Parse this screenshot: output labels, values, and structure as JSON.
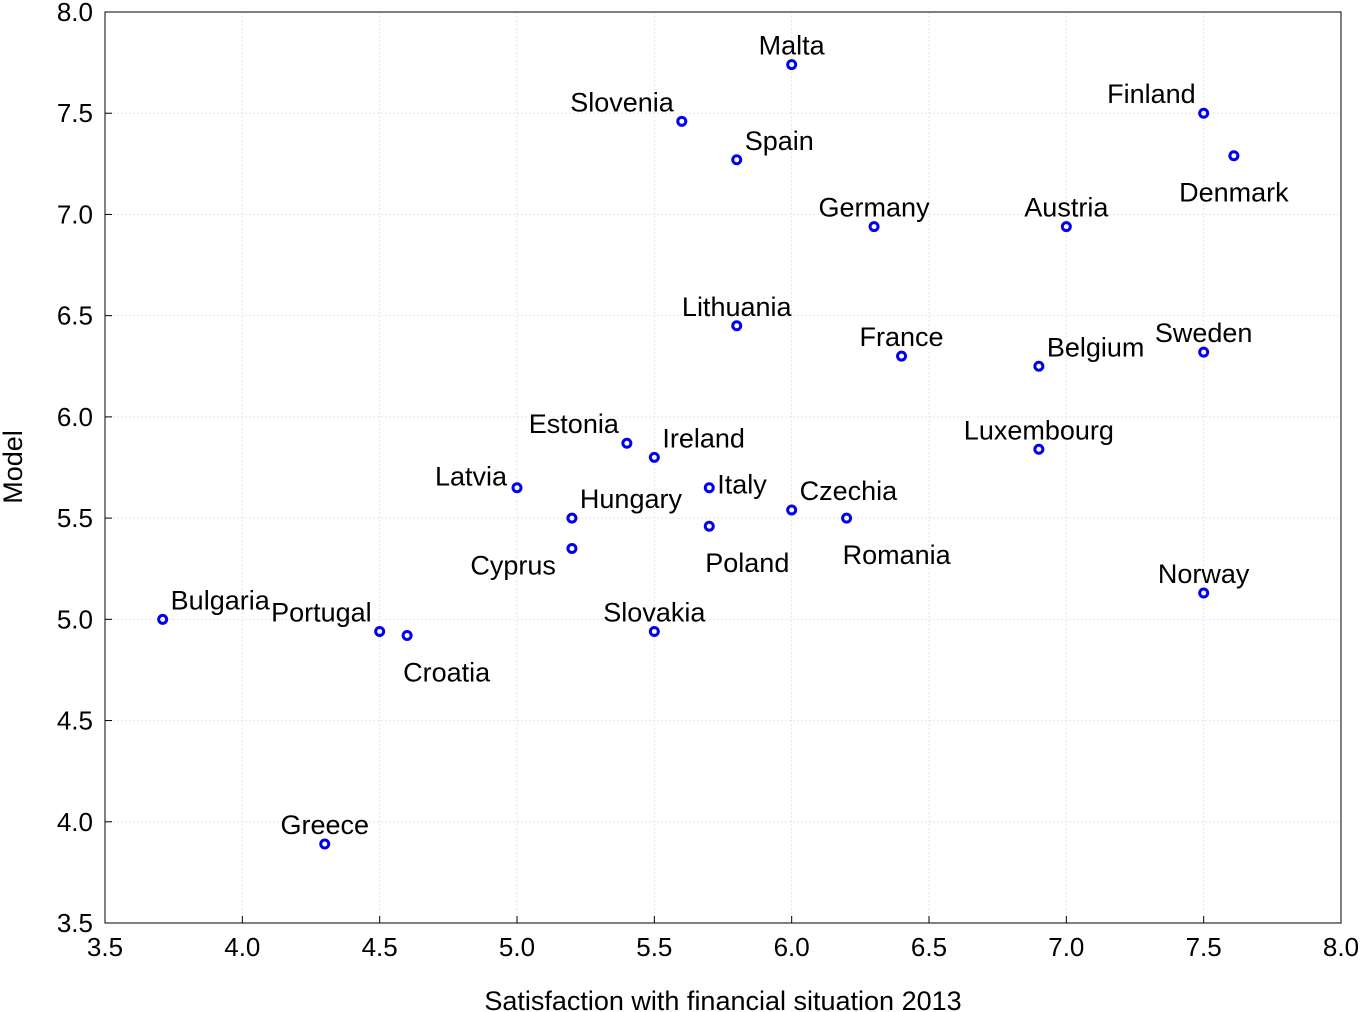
{
  "chart_data": {
    "type": "scatter",
    "title": "",
    "xlabel": "Satisfaction with financial situation 2013",
    "ylabel": "Model",
    "xlim": [
      3.5,
      8.0
    ],
    "ylim": [
      3.5,
      8.0
    ],
    "xticks": [
      "3.5",
      "4.0",
      "4.5",
      "5.0",
      "5.5",
      "6.0",
      "6.5",
      "7.0",
      "7.5",
      "8.0"
    ],
    "yticks": [
      "3.5",
      "4.0",
      "4.5",
      "5.0",
      "5.5",
      "6.0",
      "6.5",
      "7.0",
      "7.5",
      "8.0"
    ],
    "grid": true,
    "legend": "none",
    "marker_color": "#0000ee",
    "points": [
      {
        "label": "Malta",
        "x": 6.0,
        "y": 7.74,
        "pos": "above"
      },
      {
        "label": "Slovenia",
        "x": 5.6,
        "y": 7.46,
        "pos": "above-left"
      },
      {
        "label": "Spain",
        "x": 5.8,
        "y": 7.27,
        "pos": "above-right"
      },
      {
        "label": "Finland",
        "x": 7.5,
        "y": 7.5,
        "pos": "above-left"
      },
      {
        "label": "Denmark",
        "x": 7.61,
        "y": 7.29,
        "pos": "below"
      },
      {
        "label": "Germany",
        "x": 6.3,
        "y": 6.94,
        "pos": "above"
      },
      {
        "label": "Austria",
        "x": 7.0,
        "y": 6.94,
        "pos": "above"
      },
      {
        "label": "Lithuania",
        "x": 5.8,
        "y": 6.45,
        "pos": "above"
      },
      {
        "label": "France",
        "x": 6.4,
        "y": 6.3,
        "pos": "above"
      },
      {
        "label": "Belgium",
        "x": 6.9,
        "y": 6.25,
        "pos": "above-right"
      },
      {
        "label": "Sweden",
        "x": 7.5,
        "y": 6.32,
        "pos": "above"
      },
      {
        "label": "Estonia",
        "x": 5.4,
        "y": 5.87,
        "pos": "above-left"
      },
      {
        "label": "Ireland",
        "x": 5.5,
        "y": 5.8,
        "pos": "above-right"
      },
      {
        "label": "Luxembourg",
        "x": 6.9,
        "y": 5.84,
        "pos": "above"
      },
      {
        "label": "Latvia",
        "x": 5.0,
        "y": 5.65,
        "pos": "left"
      },
      {
        "label": "Italy",
        "x": 5.7,
        "y": 5.65,
        "pos": "right"
      },
      {
        "label": "Hungary",
        "x": 5.2,
        "y": 5.5,
        "pos": "above-right"
      },
      {
        "label": "Czechia",
        "x": 6.0,
        "y": 5.54,
        "pos": "above-right"
      },
      {
        "label": "Romania",
        "x": 6.2,
        "y": 5.5,
        "pos": "below-right"
      },
      {
        "label": "Poland",
        "x": 5.7,
        "y": 5.46,
        "pos": "below-right"
      },
      {
        "label": "Cyprus",
        "x": 5.2,
        "y": 5.35,
        "pos": "below-left"
      },
      {
        "label": "Norway",
        "x": 7.5,
        "y": 5.13,
        "pos": "above"
      },
      {
        "label": "Bulgaria",
        "x": 3.71,
        "y": 5.0,
        "pos": "above-right"
      },
      {
        "label": "Portugal",
        "x": 4.5,
        "y": 4.94,
        "pos": "above-left"
      },
      {
        "label": "Croatia",
        "x": 4.6,
        "y": 4.92,
        "pos": "below-right"
      },
      {
        "label": "Slovakia",
        "x": 5.5,
        "y": 4.94,
        "pos": "above"
      },
      {
        "label": "Greece",
        "x": 4.3,
        "y": 3.89,
        "pos": "above"
      }
    ]
  }
}
